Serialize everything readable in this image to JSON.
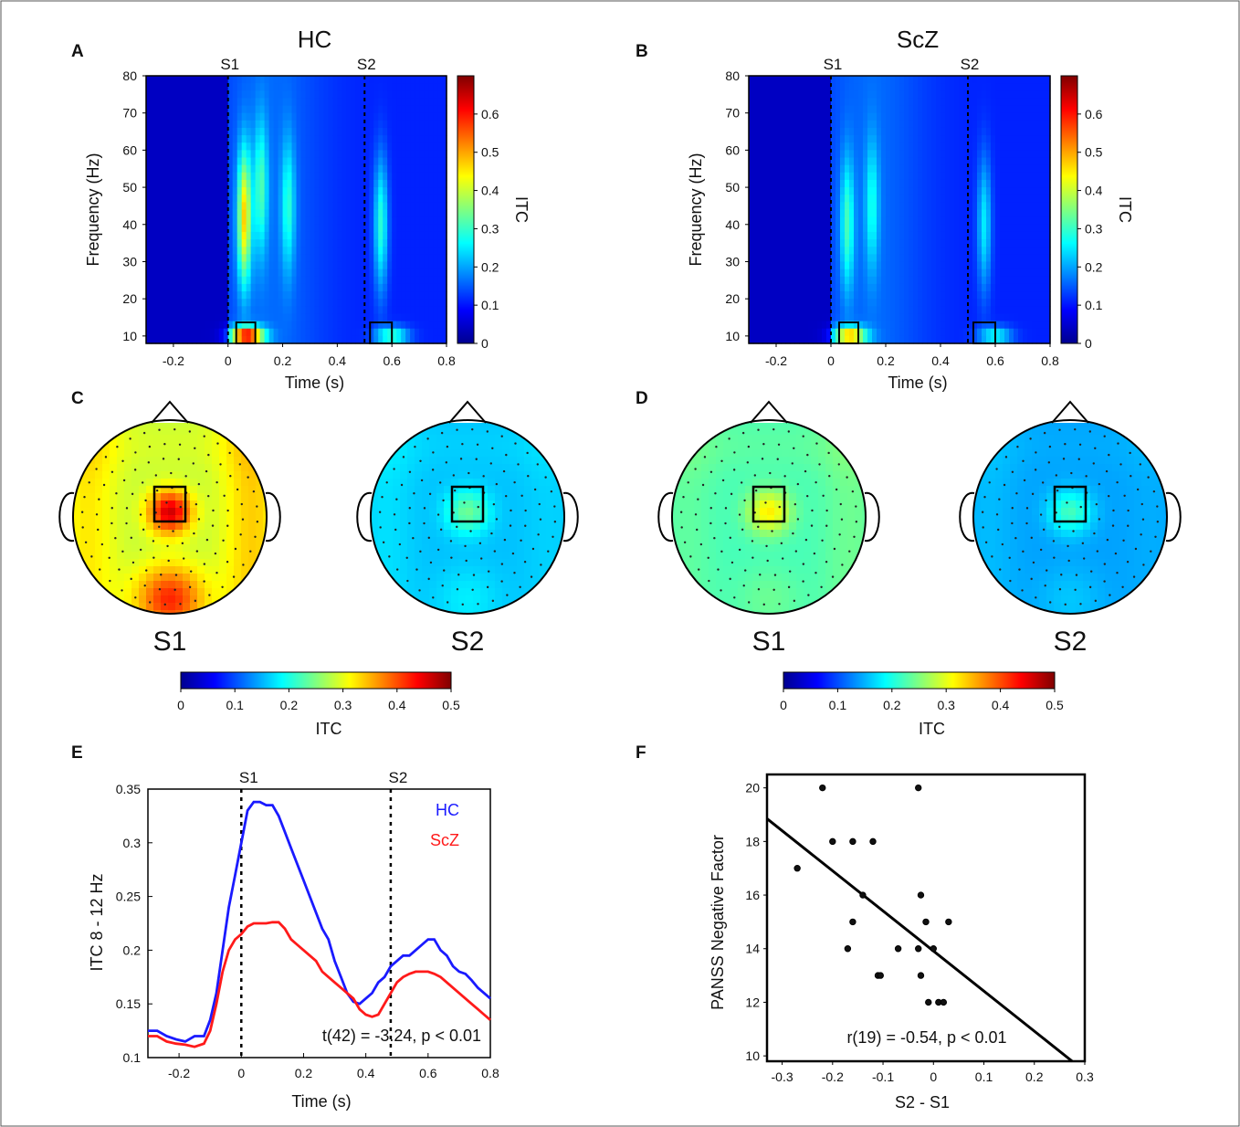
{
  "colors": {
    "hc": "#1a1aff",
    "scz": "#ff1a1a",
    "jet": [
      "#00008f",
      "#0000ff",
      "#0080ff",
      "#00ffff",
      "#80ff80",
      "#ffff00",
      "#ff8000",
      "#ff0000",
      "#800000"
    ]
  },
  "chart_data": [
    {
      "panel": "A",
      "type": "heatmap",
      "title": "HC",
      "xlabel": "Time (s)",
      "ylabel": "Frequency (Hz)",
      "colorbar_label": "ITC",
      "xlim": [
        -0.3,
        0.8
      ],
      "ylim": [
        8,
        80
      ],
      "xticks": [
        "-0.2",
        "0",
        "0.2",
        "0.4",
        "0.6",
        "0.8"
      ],
      "yticks": [
        "10",
        "20",
        "30",
        "40",
        "50",
        "60",
        "70",
        "80"
      ],
      "colorbar_ticks": [
        "0",
        "0.1",
        "0.2",
        "0.3",
        "0.4",
        "0.5",
        "0.6"
      ],
      "clim": [
        0,
        0.7
      ],
      "stimuli": [
        {
          "label": "S1",
          "t": 0
        },
        {
          "label": "S2",
          "t": 0.5
        }
      ],
      "roi": [
        {
          "t": [
            0.03,
            0.1
          ],
          "f": [
            8,
            12
          ]
        },
        {
          "t": [
            0.52,
            0.6
          ],
          "f": [
            8,
            12
          ]
        }
      ],
      "peaks": [
        {
          "t": 0.06,
          "f": 42,
          "itc": 0.42
        },
        {
          "t": 0.07,
          "f": 10,
          "itc": 0.6
        },
        {
          "t": 0.12,
          "f": 50,
          "itc": 0.26
        },
        {
          "t": 0.22,
          "f": 45,
          "itc": 0.24
        },
        {
          "t": 0.56,
          "f": 40,
          "itc": 0.28
        },
        {
          "t": 0.6,
          "f": 10,
          "itc": 0.3
        }
      ]
    },
    {
      "panel": "B",
      "type": "heatmap",
      "title": "ScZ",
      "xlabel": "Time (s)",
      "ylabel": "Frequency (Hz)",
      "colorbar_label": "ITC",
      "xlim": [
        -0.3,
        0.8
      ],
      "ylim": [
        8,
        80
      ],
      "xticks": [
        "-0.2",
        "0",
        "0.2",
        "0.4",
        "0.6",
        "0.8"
      ],
      "yticks": [
        "10",
        "20",
        "30",
        "40",
        "50",
        "60",
        "70",
        "80"
      ],
      "colorbar_ticks": [
        "0",
        "0.1",
        "0.2",
        "0.3",
        "0.4",
        "0.5",
        "0.6"
      ],
      "clim": [
        0,
        0.7
      ],
      "stimuli": [
        {
          "label": "S1",
          "t": 0
        },
        {
          "label": "S2",
          "t": 0.5
        }
      ],
      "roi": [
        {
          "t": [
            0.03,
            0.1
          ],
          "f": [
            8,
            12
          ]
        },
        {
          "t": [
            0.52,
            0.6
          ],
          "f": [
            8,
            12
          ]
        }
      ],
      "peaks": [
        {
          "t": 0.06,
          "f": 40,
          "itc": 0.26
        },
        {
          "t": 0.07,
          "f": 10,
          "itc": 0.45
        },
        {
          "t": 0.15,
          "f": 45,
          "itc": 0.22
        },
        {
          "t": 0.56,
          "f": 40,
          "itc": 0.24
        },
        {
          "t": 0.6,
          "f": 10,
          "itc": 0.26
        }
      ]
    },
    {
      "panel": "C",
      "type": "heatmap",
      "subtype": "topography",
      "labels": [
        "S1",
        "S2"
      ],
      "colorbar_label": "ITC",
      "colorbar_ticks": [
        "0",
        "0.1",
        "0.2",
        "0.3",
        "0.4",
        "0.5"
      ],
      "clim": [
        0,
        0.5
      ],
      "maps": [
        {
          "label": "S1",
          "central": 0.46,
          "frontal": 0.3,
          "parietal": 0.26,
          "occipital": 0.42,
          "left": 0.34,
          "right": 0.36
        },
        {
          "label": "S2",
          "central": 0.24,
          "frontal": 0.17,
          "parietal": 0.14,
          "occipital": 0.18,
          "left": 0.18,
          "right": 0.17
        }
      ]
    },
    {
      "panel": "D",
      "type": "heatmap",
      "subtype": "topography",
      "labels": [
        "S1",
        "S2"
      ],
      "colorbar_label": "ITC",
      "colorbar_ticks": [
        "0",
        "0.1",
        "0.2",
        "0.3",
        "0.4",
        "0.5"
      ],
      "clim": [
        0,
        0.5
      ],
      "maps": [
        {
          "label": "S1",
          "central": 0.32,
          "frontal": 0.24,
          "parietal": 0.2,
          "occipital": 0.24,
          "left": 0.24,
          "right": 0.25
        },
        {
          "label": "S2",
          "central": 0.22,
          "frontal": 0.15,
          "parietal": 0.13,
          "occipital": 0.16,
          "left": 0.16,
          "right": 0.15
        }
      ]
    },
    {
      "panel": "E",
      "type": "line",
      "xlabel": "Time (s)",
      "ylabel": "ITC  8 - 12 Hz",
      "xlim": [
        -0.3,
        0.8
      ],
      "ylim": [
        0.1,
        0.35
      ],
      "xticks": [
        "-0.2",
        "0",
        "0.2",
        "0.4",
        "0.6",
        "0.8"
      ],
      "yticks": [
        "0.1",
        "0.15",
        "0.2",
        "0.25",
        "0.3",
        "0.35"
      ],
      "stimuli": [
        {
          "label": "S1",
          "t": 0
        },
        {
          "label": "S2",
          "t": 0.48
        }
      ],
      "annotation": "t(42) = -3.24, p < 0.01",
      "legend": [
        "HC",
        "ScZ"
      ],
      "x": [
        -0.3,
        -0.27,
        -0.24,
        -0.21,
        -0.18,
        -0.15,
        -0.12,
        -0.1,
        -0.08,
        -0.06,
        -0.04,
        -0.02,
        0,
        0.02,
        0.04,
        0.06,
        0.08,
        0.1,
        0.12,
        0.14,
        0.16,
        0.18,
        0.2,
        0.22,
        0.24,
        0.26,
        0.28,
        0.3,
        0.32,
        0.34,
        0.36,
        0.38,
        0.4,
        0.42,
        0.44,
        0.46,
        0.48,
        0.5,
        0.52,
        0.54,
        0.56,
        0.58,
        0.6,
        0.62,
        0.64,
        0.66,
        0.68,
        0.7,
        0.72,
        0.74,
        0.76,
        0.78,
        0.8
      ],
      "series": [
        {
          "name": "HC",
          "values": [
            0.125,
            0.125,
            0.12,
            0.117,
            0.115,
            0.12,
            0.12,
            0.135,
            0.16,
            0.2,
            0.24,
            0.27,
            0.3,
            0.33,
            0.338,
            0.338,
            0.335,
            0.335,
            0.325,
            0.31,
            0.295,
            0.28,
            0.265,
            0.25,
            0.235,
            0.22,
            0.21,
            0.19,
            0.175,
            0.16,
            0.152,
            0.15,
            0.155,
            0.16,
            0.17,
            0.175,
            0.185,
            0.19,
            0.195,
            0.195,
            0.2,
            0.205,
            0.21,
            0.21,
            0.2,
            0.195,
            0.185,
            0.18,
            0.178,
            0.172,
            0.165,
            0.16,
            0.155
          ]
        },
        {
          "name": "ScZ",
          "values": [
            0.12,
            0.12,
            0.115,
            0.113,
            0.112,
            0.11,
            0.113,
            0.125,
            0.15,
            0.18,
            0.2,
            0.21,
            0.215,
            0.222,
            0.225,
            0.225,
            0.225,
            0.226,
            0.226,
            0.22,
            0.21,
            0.205,
            0.2,
            0.195,
            0.19,
            0.18,
            0.175,
            0.17,
            0.165,
            0.16,
            0.155,
            0.145,
            0.14,
            0.138,
            0.14,
            0.15,
            0.16,
            0.17,
            0.175,
            0.178,
            0.18,
            0.18,
            0.18,
            0.178,
            0.175,
            0.17,
            0.165,
            0.16,
            0.155,
            0.15,
            0.145,
            0.14,
            0.135
          ]
        }
      ]
    },
    {
      "panel": "F",
      "type": "scatter",
      "xlabel": "S2 - S1",
      "ylabel": "PANSS Negative Factor",
      "xlim": [
        -0.33,
        0.3
      ],
      "ylim": [
        9.8,
        20.5
      ],
      "xticks": [
        "-0.3",
        "-0.2",
        "-0.1",
        "0",
        "0.1",
        "0.2",
        "0.3"
      ],
      "yticks": [
        "10",
        "12",
        "14",
        "16",
        "18",
        "20"
      ],
      "annotation": "r(19) = -0.54, p < 0.01",
      "points": [
        {
          "x": -0.22,
          "y": 20
        },
        {
          "x": -0.03,
          "y": 20
        },
        {
          "x": -0.2,
          "y": 18
        },
        {
          "x": -0.16,
          "y": 18
        },
        {
          "x": -0.12,
          "y": 18
        },
        {
          "x": -0.27,
          "y": 17
        },
        {
          "x": -0.14,
          "y": 16
        },
        {
          "x": -0.025,
          "y": 16
        },
        {
          "x": -0.16,
          "y": 15
        },
        {
          "x": -0.015,
          "y": 15
        },
        {
          "x": 0.03,
          "y": 15
        },
        {
          "x": -0.17,
          "y": 14
        },
        {
          "x": -0.07,
          "y": 14
        },
        {
          "x": -0.03,
          "y": 14
        },
        {
          "x": 0.0,
          "y": 14
        },
        {
          "x": -0.11,
          "y": 13
        },
        {
          "x": -0.105,
          "y": 13
        },
        {
          "x": -0.025,
          "y": 13
        },
        {
          "x": -0.01,
          "y": 12
        },
        {
          "x": 0.01,
          "y": 12
        },
        {
          "x": 0.02,
          "y": 12
        }
      ],
      "fit": {
        "x0": -0.33,
        "y0": 18.85,
        "x1": 0.275,
        "y1": 9.8
      }
    }
  ]
}
